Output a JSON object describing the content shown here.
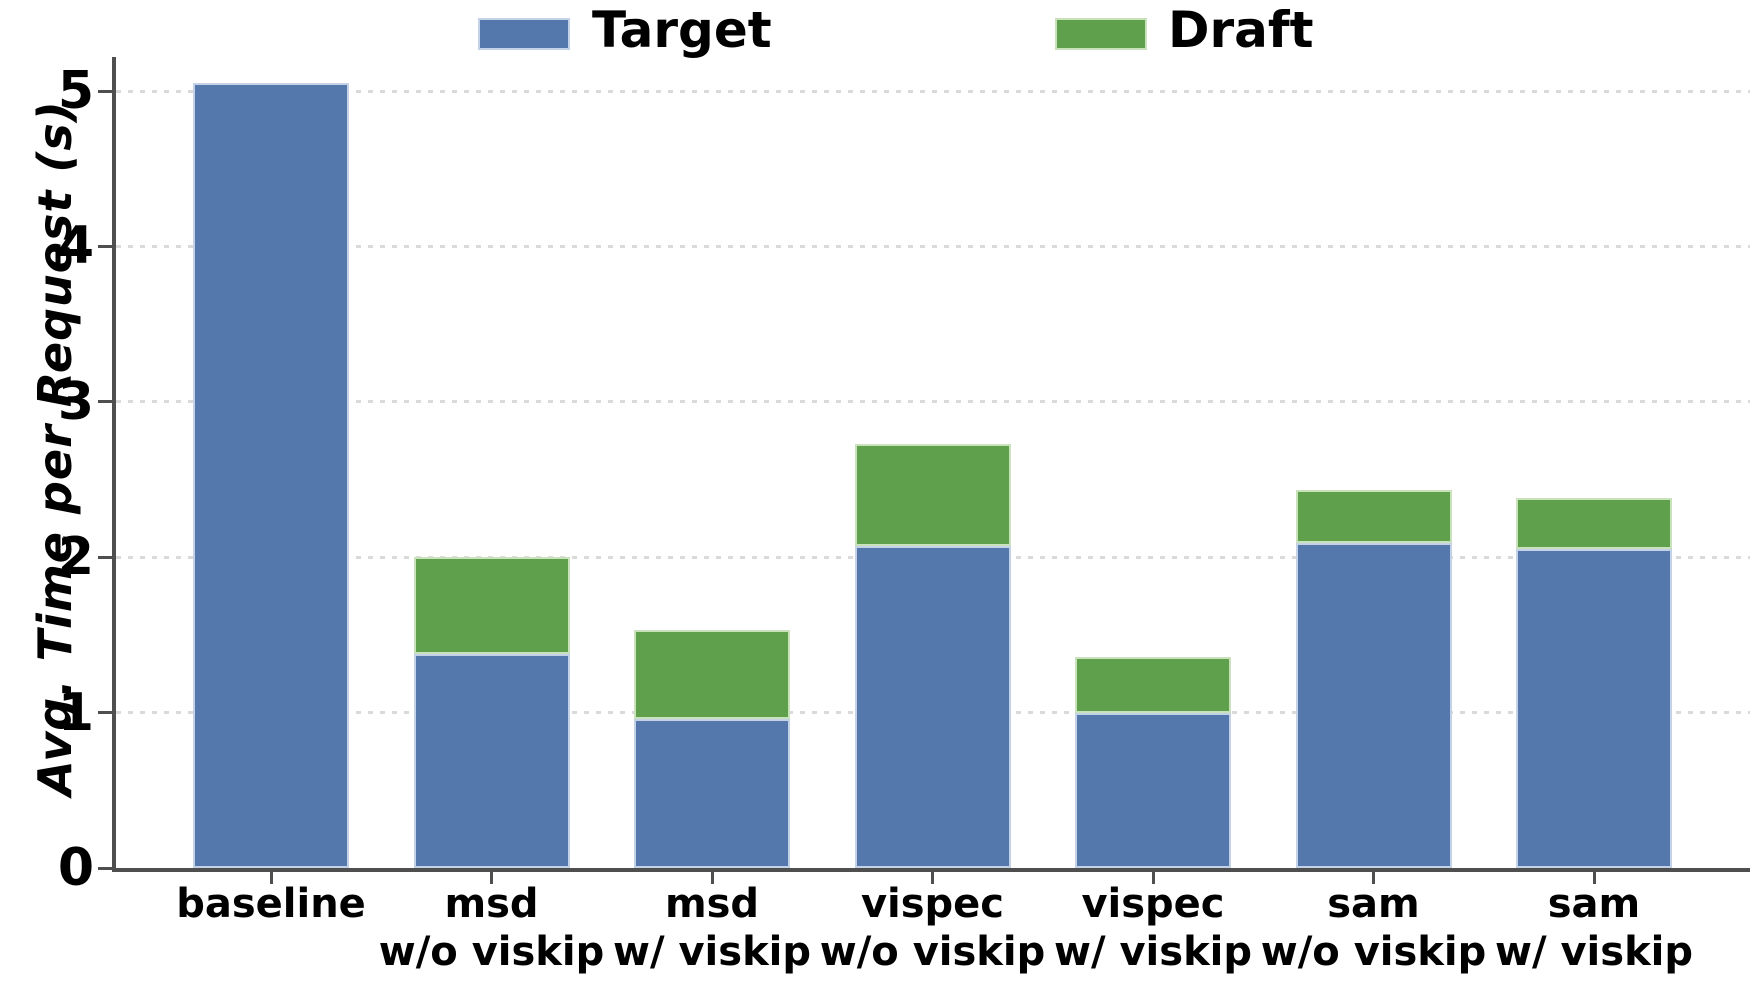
{
  "chart_data": {
    "type": "bar",
    "stacked": true,
    "title": "",
    "xlabel": "",
    "ylabel": "Avg. Time per Request (s)",
    "ylim": [
      0,
      5.2
    ],
    "yticks": [
      0,
      1,
      2,
      3,
      4,
      5
    ],
    "grid": "horizontal dotted gridlines at integer ticks",
    "legend_position": "top",
    "categories": [
      "baseline",
      "msd\nw/o viskip",
      "msd\nw/ viskip",
      "vispec\nw/o viskip",
      "vispec\nw/ viskip",
      "sam\nw/o viskip",
      "sam\nw/ viskip"
    ],
    "series": [
      {
        "name": "Target",
        "color": "#5478AC",
        "edge_color": "#c3d2e6",
        "values": [
          5.05,
          1.38,
          0.96,
          2.07,
          1.0,
          2.09,
          2.05
        ]
      },
      {
        "name": "Draft",
        "color": "#5FA04D",
        "edge_color": "#c9e2bc",
        "values": [
          0,
          0.62,
          0.57,
          0.66,
          0.36,
          0.34,
          0.33
        ]
      }
    ],
    "stack_totals": [
      5.05,
      2.0,
      1.53,
      2.73,
      1.36,
      2.43,
      2.38
    ],
    "axis_color": "#4f4f4f",
    "gridline_color": "#dadada"
  }
}
